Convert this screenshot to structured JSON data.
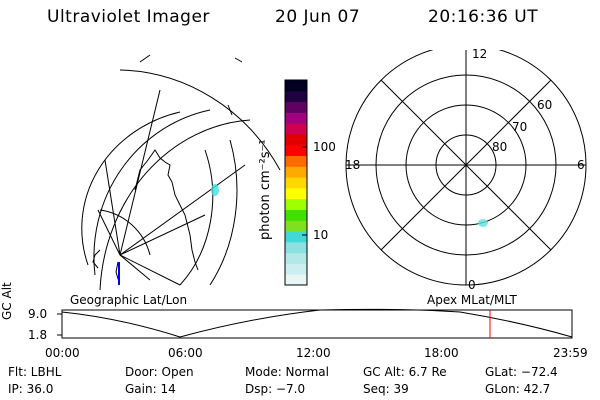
{
  "header": {
    "title": "Ultraviolet Imager",
    "date": "20 Jun 07",
    "time": "20:16:36 UT"
  },
  "left_panel": {
    "label": "Geographic Lat/Lon"
  },
  "colorbar": {
    "unit_label": "photon cm⁻²s⁻¹",
    "tick_100": "100",
    "tick_10": "10",
    "colors": [
      "#e8f6f6",
      "#cdeeee",
      "#b4e8e8",
      "#8ce0e0",
      "#40d8d8",
      "#80e020",
      "#40e000",
      "#a0ff00",
      "#ffff00",
      "#ffd800",
      "#ffaa00",
      "#ff6a00",
      "#ff0000",
      "#e00000",
      "#d00050",
      "#a00080",
      "#600060",
      "#200040",
      "#000020"
    ]
  },
  "polar_panel": {
    "label": "Apex MLat/MLT",
    "mlt_top": "12",
    "mlt_left": "18",
    "mlt_right": "6",
    "mlt_bottom": "0",
    "lat_60": "60",
    "lat_70": "70",
    "lat_80": "80"
  },
  "altitude_plot": {
    "ylabel": "GC Alt",
    "ytick_high": "9.0",
    "ytick_low": "1.8",
    "xticks": [
      "00:00",
      "06:00",
      "12:00",
      "18:00",
      "23:59"
    ],
    "current_time_marker_color": "#ff0000"
  },
  "info": {
    "filter": "Flt: LBHL",
    "door": "Door: Open",
    "mode": "Mode: Normal",
    "gc_alt": "GC Alt: 6.7 Re",
    "glat": "GLat: −72.4",
    "ip": "IP: 36.0",
    "gain": "Gain: 14",
    "dsp": "Dsp:    −7.0",
    "seq": "Seq: 39",
    "glon": "GLon:  42.7"
  }
}
